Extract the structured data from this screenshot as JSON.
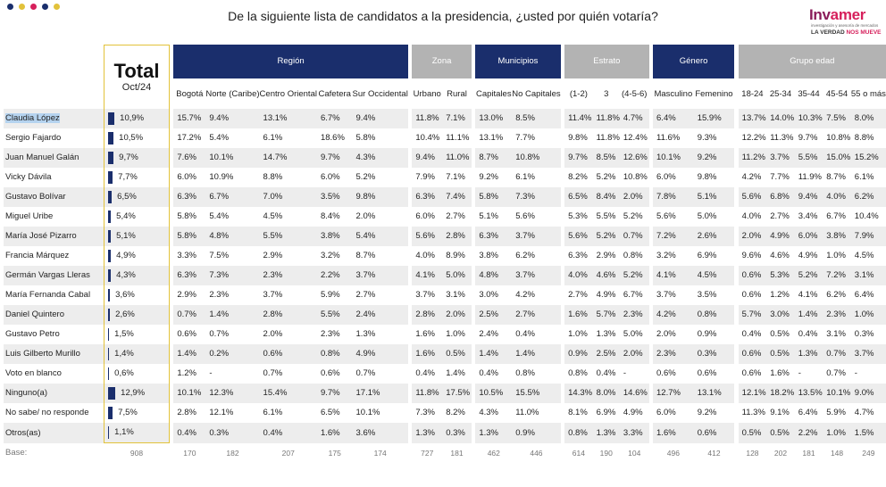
{
  "question": "De la siguiente lista de candidatos a la presidencia, ¿usted por quién votaría?",
  "logo": {
    "name_a": "Inv",
    "name_b": "amer",
    "subtitle": "investigación y asesoría de mercados",
    "tagline_a": "LA VERDAD ",
    "tagline_b": "NOS MUEVE"
  },
  "colors": {
    "navy": "#1a2e6c",
    "gray": "#b3b3b3",
    "stripe": "#ededed",
    "highlight": "#b5d3ef",
    "gold": "#e2c23a"
  },
  "total": {
    "title": "Total",
    "subtitle": "Oct/24"
  },
  "groups": [
    "Región",
    "Zona",
    "Municipios",
    "Estrato",
    "Género",
    "Grupo edad"
  ],
  "subheaders": [
    "Bogotá",
    "Norte (Caribe)",
    "Centro Oriental",
    "Cafetera",
    "Sur Occidental",
    "Urbano",
    "Rural",
    "Capitales",
    "No Capitales",
    "(1-2)",
    "3",
    "(4-5-6)",
    "Masculino",
    "Femenino",
    "18-24",
    "25-34",
    "35-44",
    "45-54",
    "55 o más"
  ],
  "rows": [
    {
      "name": "Claudia López",
      "total": "10,9%",
      "total_value": 10.9,
      "cells": [
        "15.7%",
        "9.4%",
        "13.1%",
        "6.7%",
        "9.4%",
        "11.8%",
        "7.1%",
        "13.0%",
        "8.5%",
        "11.4%",
        "11.8%",
        "4.7%",
        "6.4%",
        "15.9%",
        "13.7%",
        "14.0%",
        "10.3%",
        "7.5%",
        "8.0%"
      ]
    },
    {
      "name": "Sergio Fajardo",
      "total": "10,5%",
      "total_value": 10.5,
      "cells": [
        "17.2%",
        "5.4%",
        "6.1%",
        "18.6%",
        "5.8%",
        "10.4%",
        "11.1%",
        "13.1%",
        "7.7%",
        "9.8%",
        "11.8%",
        "12.4%",
        "11.6%",
        "9.3%",
        "12.2%",
        "11.3%",
        "9.7%",
        "10.8%",
        "8.8%"
      ]
    },
    {
      "name": "Juan Manuel Galán",
      "total": "9,7%",
      "total_value": 9.7,
      "cells": [
        "7.6%",
        "10.1%",
        "14.7%",
        "9.7%",
        "4.3%",
        "9.4%",
        "11.0%",
        "8.7%",
        "10.8%",
        "9.7%",
        "8.5%",
        "12.6%",
        "10.1%",
        "9.2%",
        "11.2%",
        "3.7%",
        "5.5%",
        "15.0%",
        "15.2%"
      ]
    },
    {
      "name": "Vicky Dávila",
      "total": "7,7%",
      "total_value": 7.7,
      "cells": [
        "6.0%",
        "10.9%",
        "8.8%",
        "6.0%",
        "5.2%",
        "7.9%",
        "7.1%",
        "9.2%",
        "6.1%",
        "8.2%",
        "5.2%",
        "10.8%",
        "6.0%",
        "9.8%",
        "4.2%",
        "7.7%",
        "11.9%",
        "8.7%",
        "6.1%"
      ]
    },
    {
      "name": "Gustavo Bolívar",
      "total": "6,5%",
      "total_value": 6.5,
      "cells": [
        "6.3%",
        "6.7%",
        "7.0%",
        "3.5%",
        "9.8%",
        "6.3%",
        "7.4%",
        "5.8%",
        "7.3%",
        "6.5%",
        "8.4%",
        "2.0%",
        "7.8%",
        "5.1%",
        "5.6%",
        "6.8%",
        "9.4%",
        "4.0%",
        "6.2%"
      ]
    },
    {
      "name": "Miguel Uribe",
      "total": "5,4%",
      "total_value": 5.4,
      "cells": [
        "5.8%",
        "5.4%",
        "4.5%",
        "8.4%",
        "2.0%",
        "6.0%",
        "2.7%",
        "5.1%",
        "5.6%",
        "5.3%",
        "5.5%",
        "5.2%",
        "5.6%",
        "5.0%",
        "4.0%",
        "2.7%",
        "3.4%",
        "6.7%",
        "10.4%"
      ]
    },
    {
      "name": "María José Pizarro",
      "total": "5,1%",
      "total_value": 5.1,
      "cells": [
        "5.8%",
        "4.8%",
        "5.5%",
        "3.8%",
        "5.4%",
        "5.6%",
        "2.8%",
        "6.3%",
        "3.7%",
        "5.6%",
        "5.2%",
        "0.7%",
        "7.2%",
        "2.6%",
        "2.0%",
        "4.9%",
        "6.0%",
        "3.8%",
        "7.9%"
      ]
    },
    {
      "name": "Francia Márquez",
      "total": "4,9%",
      "total_value": 4.9,
      "cells": [
        "3.3%",
        "7.5%",
        "2.9%",
        "3.2%",
        "8.7%",
        "4.0%",
        "8.9%",
        "3.8%",
        "6.2%",
        "6.3%",
        "2.9%",
        "0.8%",
        "3.2%",
        "6.9%",
        "9.6%",
        "4.6%",
        "4.9%",
        "1.0%",
        "4.5%"
      ]
    },
    {
      "name": "Germán Vargas Lleras",
      "total": "4,3%",
      "total_value": 4.3,
      "cells": [
        "6.3%",
        "7.3%",
        "2.3%",
        "2.2%",
        "3.7%",
        "4.1%",
        "5.0%",
        "4.8%",
        "3.7%",
        "4.0%",
        "4.6%",
        "5.2%",
        "4.1%",
        "4.5%",
        "0.6%",
        "5.3%",
        "5.2%",
        "7.2%",
        "3.1%"
      ]
    },
    {
      "name": "María Fernanda Cabal",
      "total": "3,6%",
      "total_value": 3.6,
      "cells": [
        "2.9%",
        "2.3%",
        "3.7%",
        "5.9%",
        "2.7%",
        "3.7%",
        "3.1%",
        "3.0%",
        "4.2%",
        "2.7%",
        "4.9%",
        "6.7%",
        "3.7%",
        "3.5%",
        "0.6%",
        "1.2%",
        "4.1%",
        "6.2%",
        "6.4%"
      ]
    },
    {
      "name": "Daniel Quintero",
      "total": "2,6%",
      "total_value": 2.6,
      "cells": [
        "0.7%",
        "1.4%",
        "2.8%",
        "5.5%",
        "2.4%",
        "2.8%",
        "2.0%",
        "2.5%",
        "2.7%",
        "1.6%",
        "5.7%",
        "2.3%",
        "4.2%",
        "0.8%",
        "5.7%",
        "3.0%",
        "1.4%",
        "2.3%",
        "1.0%"
      ]
    },
    {
      "name": "Gustavo Petro",
      "total": "1,5%",
      "total_value": 1.5,
      "cells": [
        "0.6%",
        "0.7%",
        "2.0%",
        "2.3%",
        "1.3%",
        "1.6%",
        "1.0%",
        "2.4%",
        "0.4%",
        "1.0%",
        "1.3%",
        "5.0%",
        "2.0%",
        "0.9%",
        "0.4%",
        "0.5%",
        "0.4%",
        "3.1%",
        "0.3%"
      ]
    },
    {
      "name": "Luis Gilberto Murillo",
      "total": "1,4%",
      "total_value": 1.4,
      "cells": [
        "1.4%",
        "0.2%",
        "0.6%",
        "0.8%",
        "4.9%",
        "1.6%",
        "0.5%",
        "1.4%",
        "1.4%",
        "0.9%",
        "2.5%",
        "2.0%",
        "2.3%",
        "0.3%",
        "0.6%",
        "0.5%",
        "1.3%",
        "0.7%",
        "3.7%"
      ]
    },
    {
      "name": "Voto en blanco",
      "total": "0,6%",
      "total_value": 0.6,
      "cells": [
        "1.2%",
        "-",
        "0.7%",
        "0.6%",
        "0.7%",
        "0.4%",
        "1.4%",
        "0.4%",
        "0.8%",
        "0.8%",
        "0.4%",
        "-",
        "0.6%",
        "0.6%",
        "0.6%",
        "1.6%",
        "-",
        "0.7%",
        "-"
      ]
    },
    {
      "name": "Ninguno(a)",
      "total": "12,9%",
      "total_value": 12.9,
      "cells": [
        "10.1%",
        "12.3%",
        "15.4%",
        "9.7%",
        "17.1%",
        "11.8%",
        "17.5%",
        "10.5%",
        "15.5%",
        "14.3%",
        "8.0%",
        "14.6%",
        "12.7%",
        "13.1%",
        "12.1%",
        "18.2%",
        "13.5%",
        "10.1%",
        "9.0%"
      ]
    },
    {
      "name": "No sabe/ no responde",
      "total": "7,5%",
      "total_value": 7.5,
      "cells": [
        "2.8%",
        "12.1%",
        "6.1%",
        "6.5%",
        "10.1%",
        "7.3%",
        "8.2%",
        "4.3%",
        "11.0%",
        "8.1%",
        "6.9%",
        "4.9%",
        "6.0%",
        "9.2%",
        "11.3%",
        "9.1%",
        "6.4%",
        "5.9%",
        "4.7%"
      ]
    },
    {
      "name": "Otros(as)",
      "total": "1,1%",
      "total_value": 1.1,
      "cells": [
        "0.4%",
        "0.3%",
        "0.4%",
        "1.6%",
        "3.6%",
        "1.3%",
        "0.3%",
        "1.3%",
        "0.9%",
        "0.8%",
        "1.3%",
        "3.3%",
        "1.6%",
        "0.6%",
        "0.5%",
        "0.5%",
        "2.2%",
        "1.0%",
        "1.5%"
      ]
    }
  ],
  "base": {
    "label": "Base:",
    "total": "908",
    "cells": [
      "170",
      "182",
      "207",
      "175",
      "174",
      "727",
      "181",
      "462",
      "446",
      "614",
      "190",
      "104",
      "496",
      "412",
      "128",
      "202",
      "181",
      "148",
      "249"
    ]
  }
}
